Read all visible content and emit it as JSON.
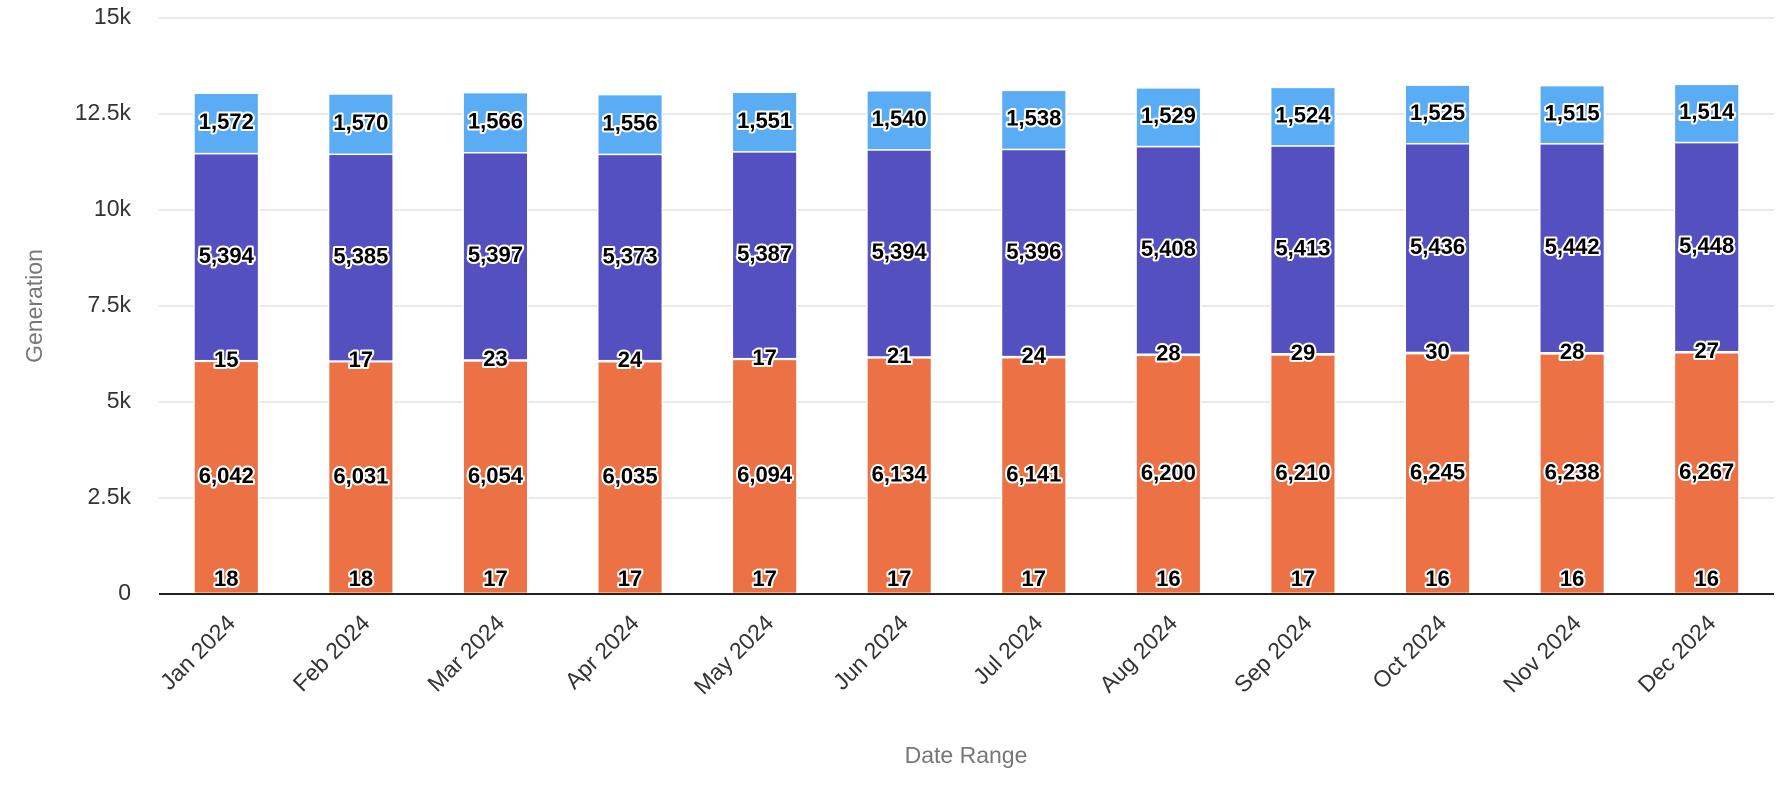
{
  "chart_data": {
    "type": "stacked_bar",
    "y_label": "Generation",
    "x_label": "Date Range",
    "categories": [
      "Jan 2024",
      "Feb 2024",
      "Mar 2024",
      "Apr 2024",
      "May 2024",
      "Jun 2024",
      "Jul 2024",
      "Aug 2024",
      "Sep 2024",
      "Oct 2024",
      "Nov 2024",
      "Dec 2024"
    ],
    "ylim": [
      0,
      15000
    ],
    "yticks": [
      0,
      {
        "value": 2500,
        "label": "2.5k"
      },
      {
        "value": 5000,
        "label": "5k"
      },
      {
        "value": 7500,
        "label": "7.5k"
      },
      {
        "value": 10000,
        "label": "10k"
      },
      {
        "value": 12500,
        "label": "12.5k"
      },
      {
        "value": 15000,
        "label": "15k"
      }
    ],
    "grid": true,
    "series": [
      {
        "color": "#d9623a",
        "values": [
          18,
          18,
          17,
          17,
          17,
          17,
          17,
          16,
          17,
          16,
          16,
          16
        ]
      },
      {
        "color": "#ec7245",
        "values": [
          6042,
          6031,
          6054,
          6035,
          6094,
          6134,
          6141,
          6200,
          6210,
          6245,
          6238,
          6267
        ],
        "value_labels": [
          "6,042",
          "6,031",
          "6,054",
          "6,035",
          "6,094",
          "6,134",
          "6,141",
          "6,200",
          "6,210",
          "6,245",
          "6,238",
          "6,267"
        ]
      },
      {
        "color": "#f2f2f2",
        "values": [
          15,
          17,
          23,
          24,
          17,
          21,
          24,
          28,
          29,
          30,
          28,
          27
        ]
      },
      {
        "color": "#5450c0",
        "values": [
          5394,
          5385,
          5397,
          5373,
          5387,
          5394,
          5396,
          5408,
          5413,
          5436,
          5442,
          5448
        ],
        "value_labels": [
          "5,394",
          "5,385",
          "5,397",
          "5,373",
          "5,387",
          "5,394",
          "5,396",
          "5,408",
          "5,413",
          "5,436",
          "5,442",
          "5,448"
        ]
      },
      {
        "color": "#5aacf5",
        "values": [
          1572,
          1570,
          1566,
          1556,
          1551,
          1540,
          1538,
          1529,
          1524,
          1525,
          1515,
          1514
        ],
        "value_labels": [
          "1,572",
          "1,570",
          "1,566",
          "1,556",
          "1,551",
          "1,540",
          "1,538",
          "1,529",
          "1,524",
          "1,525",
          "1,515",
          "1,514"
        ]
      }
    ]
  }
}
